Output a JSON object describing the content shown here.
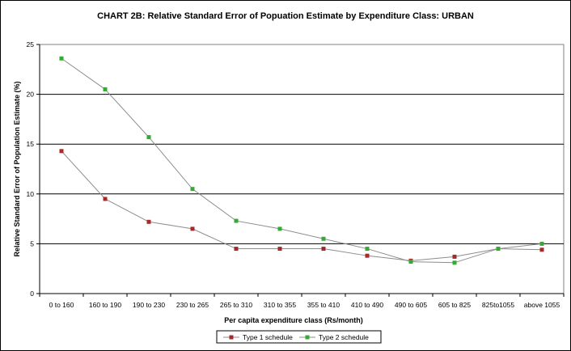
{
  "chart_data": {
    "type": "line",
    "title": "CHART 2B: Relative Standard Error of Popuation Estimate by Expenditure Class: URBAN",
    "xlabel": "Per capita expenditure class (Rs/month)",
    "ylabel": "Relative Standard Error of Population Estimate (%)",
    "ylim": [
      0,
      25
    ],
    "yticks": [
      0,
      5,
      10,
      15,
      20,
      25
    ],
    "grid": true,
    "legend_position": "bottom",
    "categories": [
      "0 to 160",
      "160 to 190",
      "190 to 230",
      "230 to 265",
      "265 to 310",
      "310 to 355",
      "355 to 410",
      "410 to 490",
      "490 to 605",
      "605 to 825",
      "825to1055",
      "above 1055"
    ],
    "series": [
      {
        "name": "Type 1 schedule",
        "color": "#a52a2a",
        "values": [
          14.3,
          9.5,
          7.2,
          6.5,
          4.5,
          4.5,
          4.5,
          3.8,
          3.3,
          3.7,
          4.5,
          4.4
        ]
      },
      {
        "name": "Type 2 schedule",
        "color": "#33aa33",
        "values": [
          23.6,
          20.5,
          15.7,
          10.5,
          7.3,
          6.5,
          5.5,
          4.5,
          3.2,
          3.1,
          4.5,
          5.0
        ]
      }
    ]
  }
}
